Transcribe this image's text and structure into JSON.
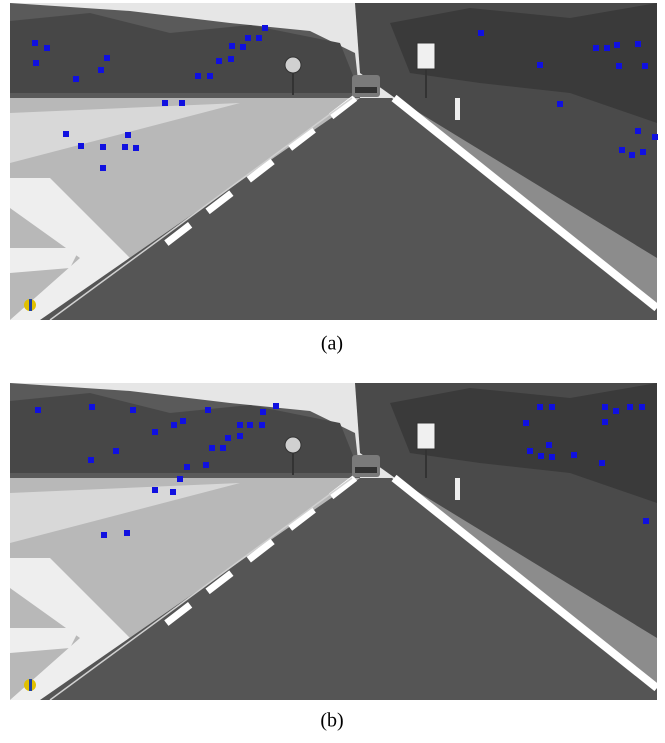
{
  "figure": {
    "panels": [
      {
        "caption": "(a)"
      },
      {
        "caption": "(b)"
      }
    ]
  }
}
